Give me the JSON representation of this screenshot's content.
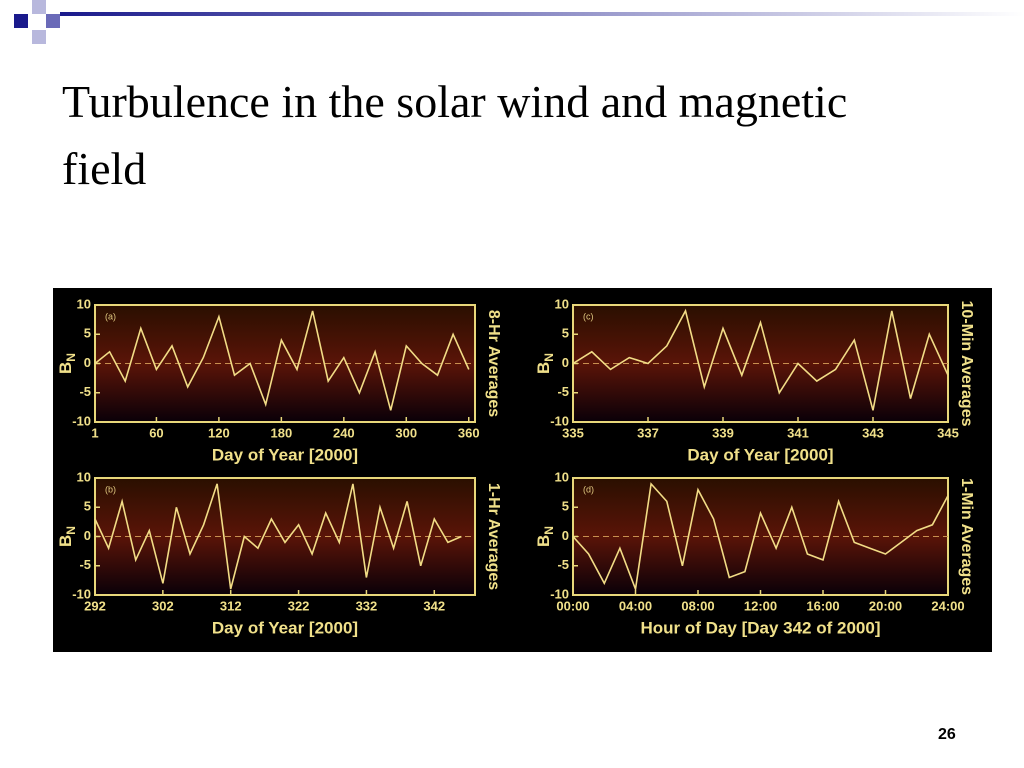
{
  "slide": {
    "title": "Turbulence in the solar wind and magnetic field",
    "page_number": "26"
  },
  "chart_data": [
    {
      "type": "line",
      "panel_label": "(a)",
      "side_label": "8-Hr Averages",
      "xlabel": "Day of Year [2000]",
      "ylabel": "B",
      "ylabel_subscript": "N",
      "xlim": [
        1,
        366
      ],
      "xticks": [
        1,
        60,
        120,
        180,
        240,
        300,
        360
      ],
      "ylim": [
        -10,
        10
      ],
      "yticks": [
        -10,
        -5,
        0,
        5,
        10
      ],
      "color": "#f2dc86",
      "x": [
        1,
        15,
        30,
        45,
        60,
        75,
        90,
        105,
        120,
        135,
        150,
        165,
        180,
        195,
        210,
        225,
        240,
        255,
        270,
        285,
        300,
        315,
        330,
        345,
        360
      ],
      "values": [
        0,
        2,
        -3,
        6,
        -1,
        3,
        -4,
        1,
        8,
        -2,
        0,
        -7,
        4,
        -1,
        9,
        -3,
        1,
        -5,
        2,
        -8,
        3,
        0,
        -2,
        5,
        -1
      ]
    },
    {
      "type": "line",
      "panel_label": "(c)",
      "side_label": "10-Min Averages",
      "xlabel": "Day of Year [2000]",
      "ylabel": "B",
      "ylabel_subscript": "N",
      "xlim": [
        335,
        345
      ],
      "xticks": [
        335,
        337,
        339,
        341,
        343,
        345
      ],
      "ylim": [
        -10,
        10
      ],
      "yticks": [
        -10,
        -5,
        0,
        5,
        10
      ],
      "color": "#f2dc86",
      "x": [
        335,
        335.5,
        336,
        336.5,
        337,
        337.5,
        338,
        338.5,
        339,
        339.5,
        340,
        340.5,
        341,
        341.5,
        342,
        342.5,
        343,
        343.5,
        344,
        344.5,
        345
      ],
      "values": [
        0,
        2,
        -1,
        1,
        0,
        3,
        9,
        -4,
        6,
        -2,
        7,
        -5,
        0,
        -3,
        -1,
        4,
        -8,
        9,
        -6,
        5,
        -2
      ]
    },
    {
      "type": "line",
      "panel_label": "(b)",
      "side_label": "1-Hr Averages",
      "xlabel": "Day of Year [2000]",
      "ylabel": "B",
      "ylabel_subscript": "N",
      "xlim": [
        292,
        348
      ],
      "xticks": [
        292,
        302,
        312,
        322,
        332,
        342
      ],
      "ylim": [
        -10,
        10
      ],
      "yticks": [
        -10,
        -5,
        0,
        5,
        10
      ],
      "color": "#f2dc86",
      "x": [
        292,
        294,
        296,
        298,
        300,
        302,
        304,
        306,
        308,
        310,
        312,
        314,
        316,
        318,
        320,
        322,
        324,
        326,
        328,
        330,
        332,
        334,
        336,
        338,
        340,
        342,
        344,
        346
      ],
      "values": [
        3,
        -2,
        6,
        -4,
        1,
        -8,
        5,
        -3,
        2,
        9,
        -9,
        0,
        -2,
        3,
        -1,
        2,
        -3,
        4,
        -1,
        9,
        -7,
        5,
        -2,
        6,
        -5,
        3,
        -1,
        0
      ]
    },
    {
      "type": "line",
      "panel_label": "(d)",
      "side_label": "1-Min Averages",
      "xlabel": "Hour of Day [Day 342 of 2000]",
      "ylabel": "B",
      "ylabel_subscript": "N",
      "xlim": [
        0,
        24
      ],
      "xticks": [
        {
          "value": 0,
          "label": "00:00"
        },
        {
          "value": 4,
          "label": "04:00"
        },
        {
          "value": 8,
          "label": "08:00"
        },
        {
          "value": 12,
          "label": "12:00"
        },
        {
          "value": 16,
          "label": "16:00"
        },
        {
          "value": 20,
          "label": "20:00"
        },
        {
          "value": 24,
          "label": "24:00"
        }
      ],
      "ylim": [
        -10,
        10
      ],
      "yticks": [
        -10,
        -5,
        0,
        5,
        10
      ],
      "color": "#f2dc86",
      "x": [
        0,
        1,
        2,
        3,
        4,
        5,
        6,
        7,
        8,
        9,
        10,
        11,
        12,
        13,
        14,
        15,
        16,
        17,
        18,
        19,
        20,
        21,
        22,
        23,
        24
      ],
      "values": [
        0,
        -3,
        -8,
        -2,
        -9,
        9,
        6,
        -5,
        8,
        3,
        -7,
        -6,
        4,
        -2,
        5,
        -3,
        -4,
        6,
        -1,
        -2,
        -3,
        -1,
        1,
        2,
        7
      ]
    }
  ]
}
